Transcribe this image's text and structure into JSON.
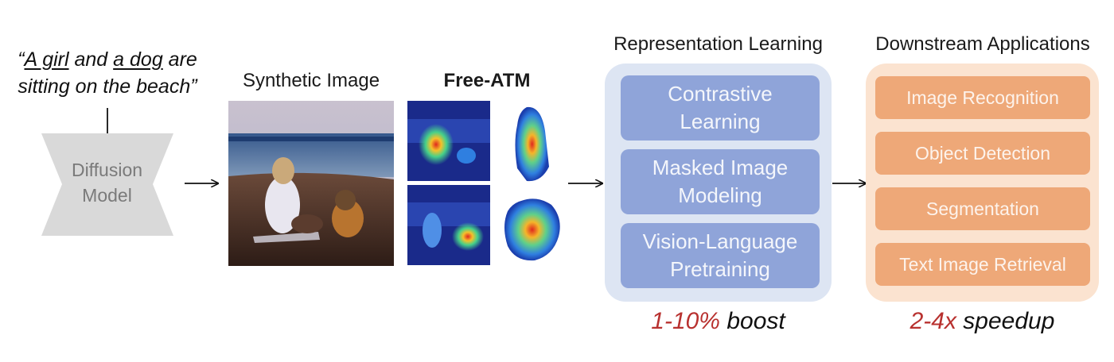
{
  "prompt": {
    "open_quote": "“",
    "phrase1": "A girl",
    "mid1": " and ",
    "phrase2": "a dog",
    "mid2": " are",
    "line2": "sitting on the beach”"
  },
  "diffusion_model": {
    "line1": "Diffusion",
    "line2": "Model"
  },
  "synthetic_image": {
    "title": "Synthetic Image"
  },
  "free_atm": {
    "title": "Free-ATM"
  },
  "representation_learning": {
    "title": "Representation Learning",
    "items": [
      "Contrastive\nLearning",
      "Masked Image\nModeling",
      "Vision-Language\nPretraining"
    ],
    "footer_highlight": "1-10%",
    "footer_rest": " boost"
  },
  "downstream": {
    "title": "Downstream Applications",
    "items": [
      "Image Recognition",
      "Object Detection",
      "Segmentation",
      "Text Image Retrieval"
    ],
    "footer_highlight": "2-4x",
    "footer_rest": " speedup"
  },
  "colors": {
    "rep_panel": "#dde5f3",
    "rep_box": "#8fa4d9",
    "down_panel": "#fbe3d0",
    "down_box": "#eea878",
    "highlight": "#b8312f"
  }
}
